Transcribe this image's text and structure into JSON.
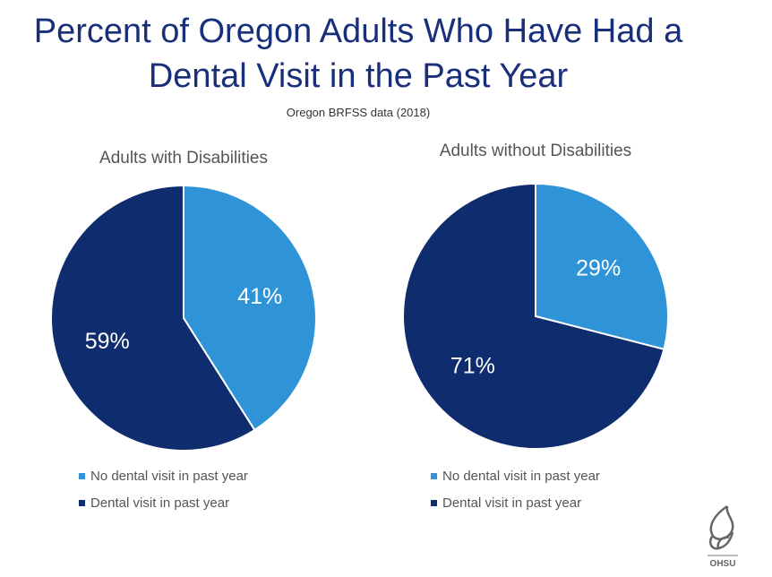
{
  "title_line1": "Percent of Oregon Adults Who Have Had a",
  "title_line2": "Dental Visit in the Past Year",
  "subtitle": "Oregon BRFSS data (2018)",
  "logo_text": "OHSU",
  "colors": {
    "no_visit": "#2f94d7",
    "visit": "#0e2c6e",
    "title": "#1a2f7a"
  },
  "chart_data": [
    {
      "type": "pie",
      "title": "Adults with Disabilities",
      "categories": [
        "No dental visit in past year",
        "Dental visit in past year"
      ],
      "values": [
        41,
        59
      ],
      "labels": [
        "41%",
        "59%"
      ],
      "legend": "bottom"
    },
    {
      "type": "pie",
      "title": "Adults without Disabilities",
      "categories": [
        "No dental visit in past year",
        "Dental visit in past year"
      ],
      "values": [
        29,
        71
      ],
      "labels": [
        "29%",
        "71%"
      ],
      "legend": "bottom"
    }
  ]
}
